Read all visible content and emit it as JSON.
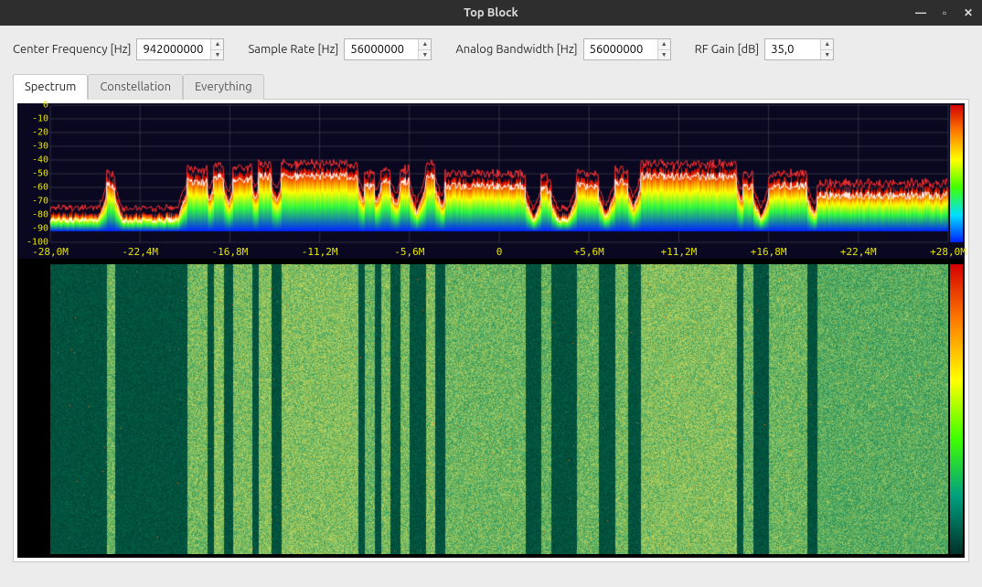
{
  "window": {
    "title": "Top Block",
    "minimize_icon": "—",
    "maximize_icon": "▫",
    "close_icon": "✕"
  },
  "params": {
    "center_freq": {
      "label": "Center Frequency [Hz]",
      "value": "942000000"
    },
    "sample_rate": {
      "label": "Sample Rate [Hz]",
      "value": "56000000"
    },
    "analog_bw": {
      "label": "Analog Bandwidth [Hz]",
      "value": "56000000"
    },
    "rf_gain": {
      "label": "RF Gain [dB]",
      "value": "35,0"
    }
  },
  "tabs": {
    "items": [
      {
        "label": "Spectrum",
        "active": true
      },
      {
        "label": "Constellation",
        "active": false
      },
      {
        "label": "Everything",
        "active": false
      }
    ]
  },
  "spectrum": {
    "type": "fft+waterfall",
    "background_color": "#0a0720",
    "axis_text_color": "#e8e800",
    "axis_font": "monospace",
    "y": {
      "min": -100,
      "max": 0,
      "step": 10,
      "labels": [
        "0",
        "-10",
        "-20",
        "-30",
        "-40",
        "-50",
        "-60",
        "-70",
        "-80",
        "-90",
        "-100"
      ]
    },
    "x": {
      "min_mhz": -28.0,
      "max_mhz": 28.0,
      "ticks_mhz": [
        -28.0,
        -22.4,
        -16.8,
        -11.2,
        -5.6,
        0.0,
        5.6,
        11.2,
        16.8,
        22.4,
        28.0
      ],
      "labels": [
        "-28,0M",
        "-22,4M",
        "-16,8M",
        "-11,2M",
        "-5,6M",
        "0",
        "+5,6M",
        "+11,2M",
        "+16,8M",
        "+22,4M",
        "+28,0M"
      ]
    },
    "intensity_palette": [
      "#0020ff",
      "#00e0ff",
      "#40ff00",
      "#ffff00",
      "#ff8000",
      "#d40000"
    ],
    "waterfall_palette": [
      "#002820",
      "#004838",
      "#0a7050",
      "#3aa060",
      "#b0d060",
      "#ffe040",
      "#ff6000",
      "#d40000"
    ],
    "noise_floor_db": -80,
    "max_hold_color": "#ff3030",
    "avg_color": "#ffffff",
    "signals_mhz": [
      {
        "start": -24.5,
        "end": -24.0,
        "peak_db": -55
      },
      {
        "start": -19.5,
        "end": -18.2,
        "peak_db": -52
      },
      {
        "start": -17.8,
        "end": -17.2,
        "peak_db": -48
      },
      {
        "start": -16.6,
        "end": -15.4,
        "peak_db": -50
      },
      {
        "start": -15.0,
        "end": -14.2,
        "peak_db": -48
      },
      {
        "start": -13.6,
        "end": -8.8,
        "peak_db": -48
      },
      {
        "start": -8.4,
        "end": -7.8,
        "peak_db": -55
      },
      {
        "start": -7.4,
        "end": -6.8,
        "peak_db": -50
      },
      {
        "start": -6.2,
        "end": -5.6,
        "peak_db": -52
      },
      {
        "start": -4.6,
        "end": -4.0,
        "peak_db": -48
      },
      {
        "start": -3.4,
        "end": 1.6,
        "peak_db": -55
      },
      {
        "start": 2.6,
        "end": 3.2,
        "peak_db": -58
      },
      {
        "start": 4.8,
        "end": 6.2,
        "peak_db": -55
      },
      {
        "start": 7.2,
        "end": 8.0,
        "peak_db": -52
      },
      {
        "start": 8.8,
        "end": 14.8,
        "peak_db": -48
      },
      {
        "start": 15.2,
        "end": 15.8,
        "peak_db": -55
      },
      {
        "start": 16.8,
        "end": 19.2,
        "peak_db": -55
      },
      {
        "start": 19.8,
        "end": 28.0,
        "peak_db": -62
      }
    ]
  }
}
